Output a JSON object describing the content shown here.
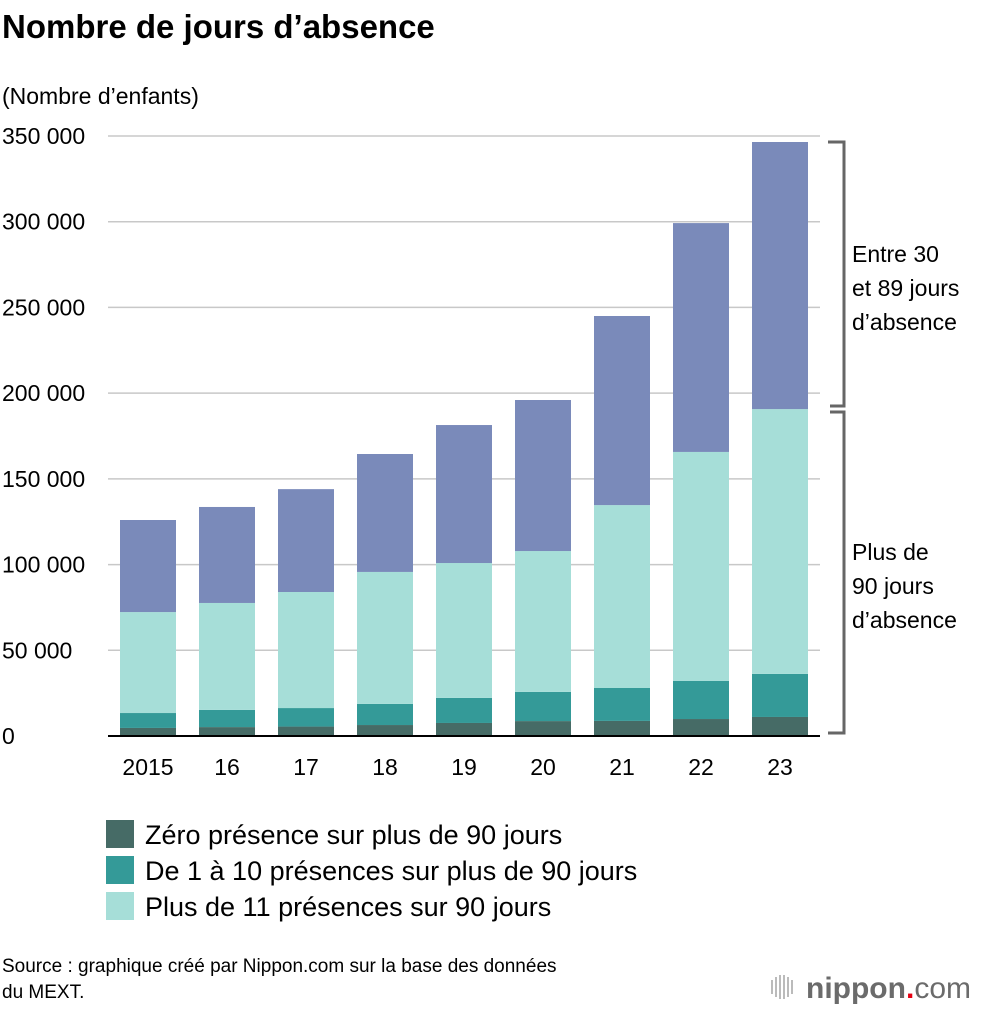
{
  "chart_data": {
    "type": "bar",
    "stacked": true,
    "title": "Nombre de jours d’absence",
    "ylabel": "(Nombre d’enfants)",
    "ylim": [
      0,
      350000
    ],
    "yticks": [
      0,
      50000,
      100000,
      150000,
      200000,
      250000,
      300000,
      350000
    ],
    "ytick_labels": [
      "0",
      "50 000",
      "100 000",
      "150 000",
      "200 000",
      "250 000",
      "300 000",
      "350 000"
    ],
    "grid": true,
    "categories": [
      "2015",
      "16",
      "17",
      "18",
      "19",
      "20",
      "21",
      "22",
      "23"
    ],
    "series": [
      {
        "name": "Zéro présence sur plus de 90 jours",
        "color": "#466b66",
        "values": [
          4700,
          5200,
          5500,
          6400,
          7600,
          8700,
          8800,
          9900,
          11100
        ]
      },
      {
        "name": "De 1 à 10 présences sur plus de 90 jours",
        "color": "#349a98",
        "values": [
          8700,
          10000,
          10800,
          12300,
          14600,
          17000,
          19200,
          22200,
          25100
        ]
      },
      {
        "name": "Plus de 11 présences sur 90 jours",
        "color": "#a6ded8",
        "values": [
          58900,
          62400,
          67700,
          77000,
          78700,
          82200,
          106700,
          133600,
          154500
        ]
      },
      {
        "name": "",
        "color": "#7a8aba",
        "values": [
          53700,
          56000,
          60000,
          68800,
          80500,
          88100,
          110300,
          133500,
          155800
        ]
      }
    ],
    "annotations": {
      "upper_bracket": [
        "Entre 30",
        "et 89 jours",
        "d’absence"
      ],
      "lower_bracket": [
        "Plus de",
        "90 jours",
        "d’absence"
      ]
    },
    "legend_position": "bottom-left",
    "source": [
      "Source : graphique créé par Nippon.com sur la base des données",
      "du MEXT."
    ],
    "logo": "nippon.com"
  }
}
